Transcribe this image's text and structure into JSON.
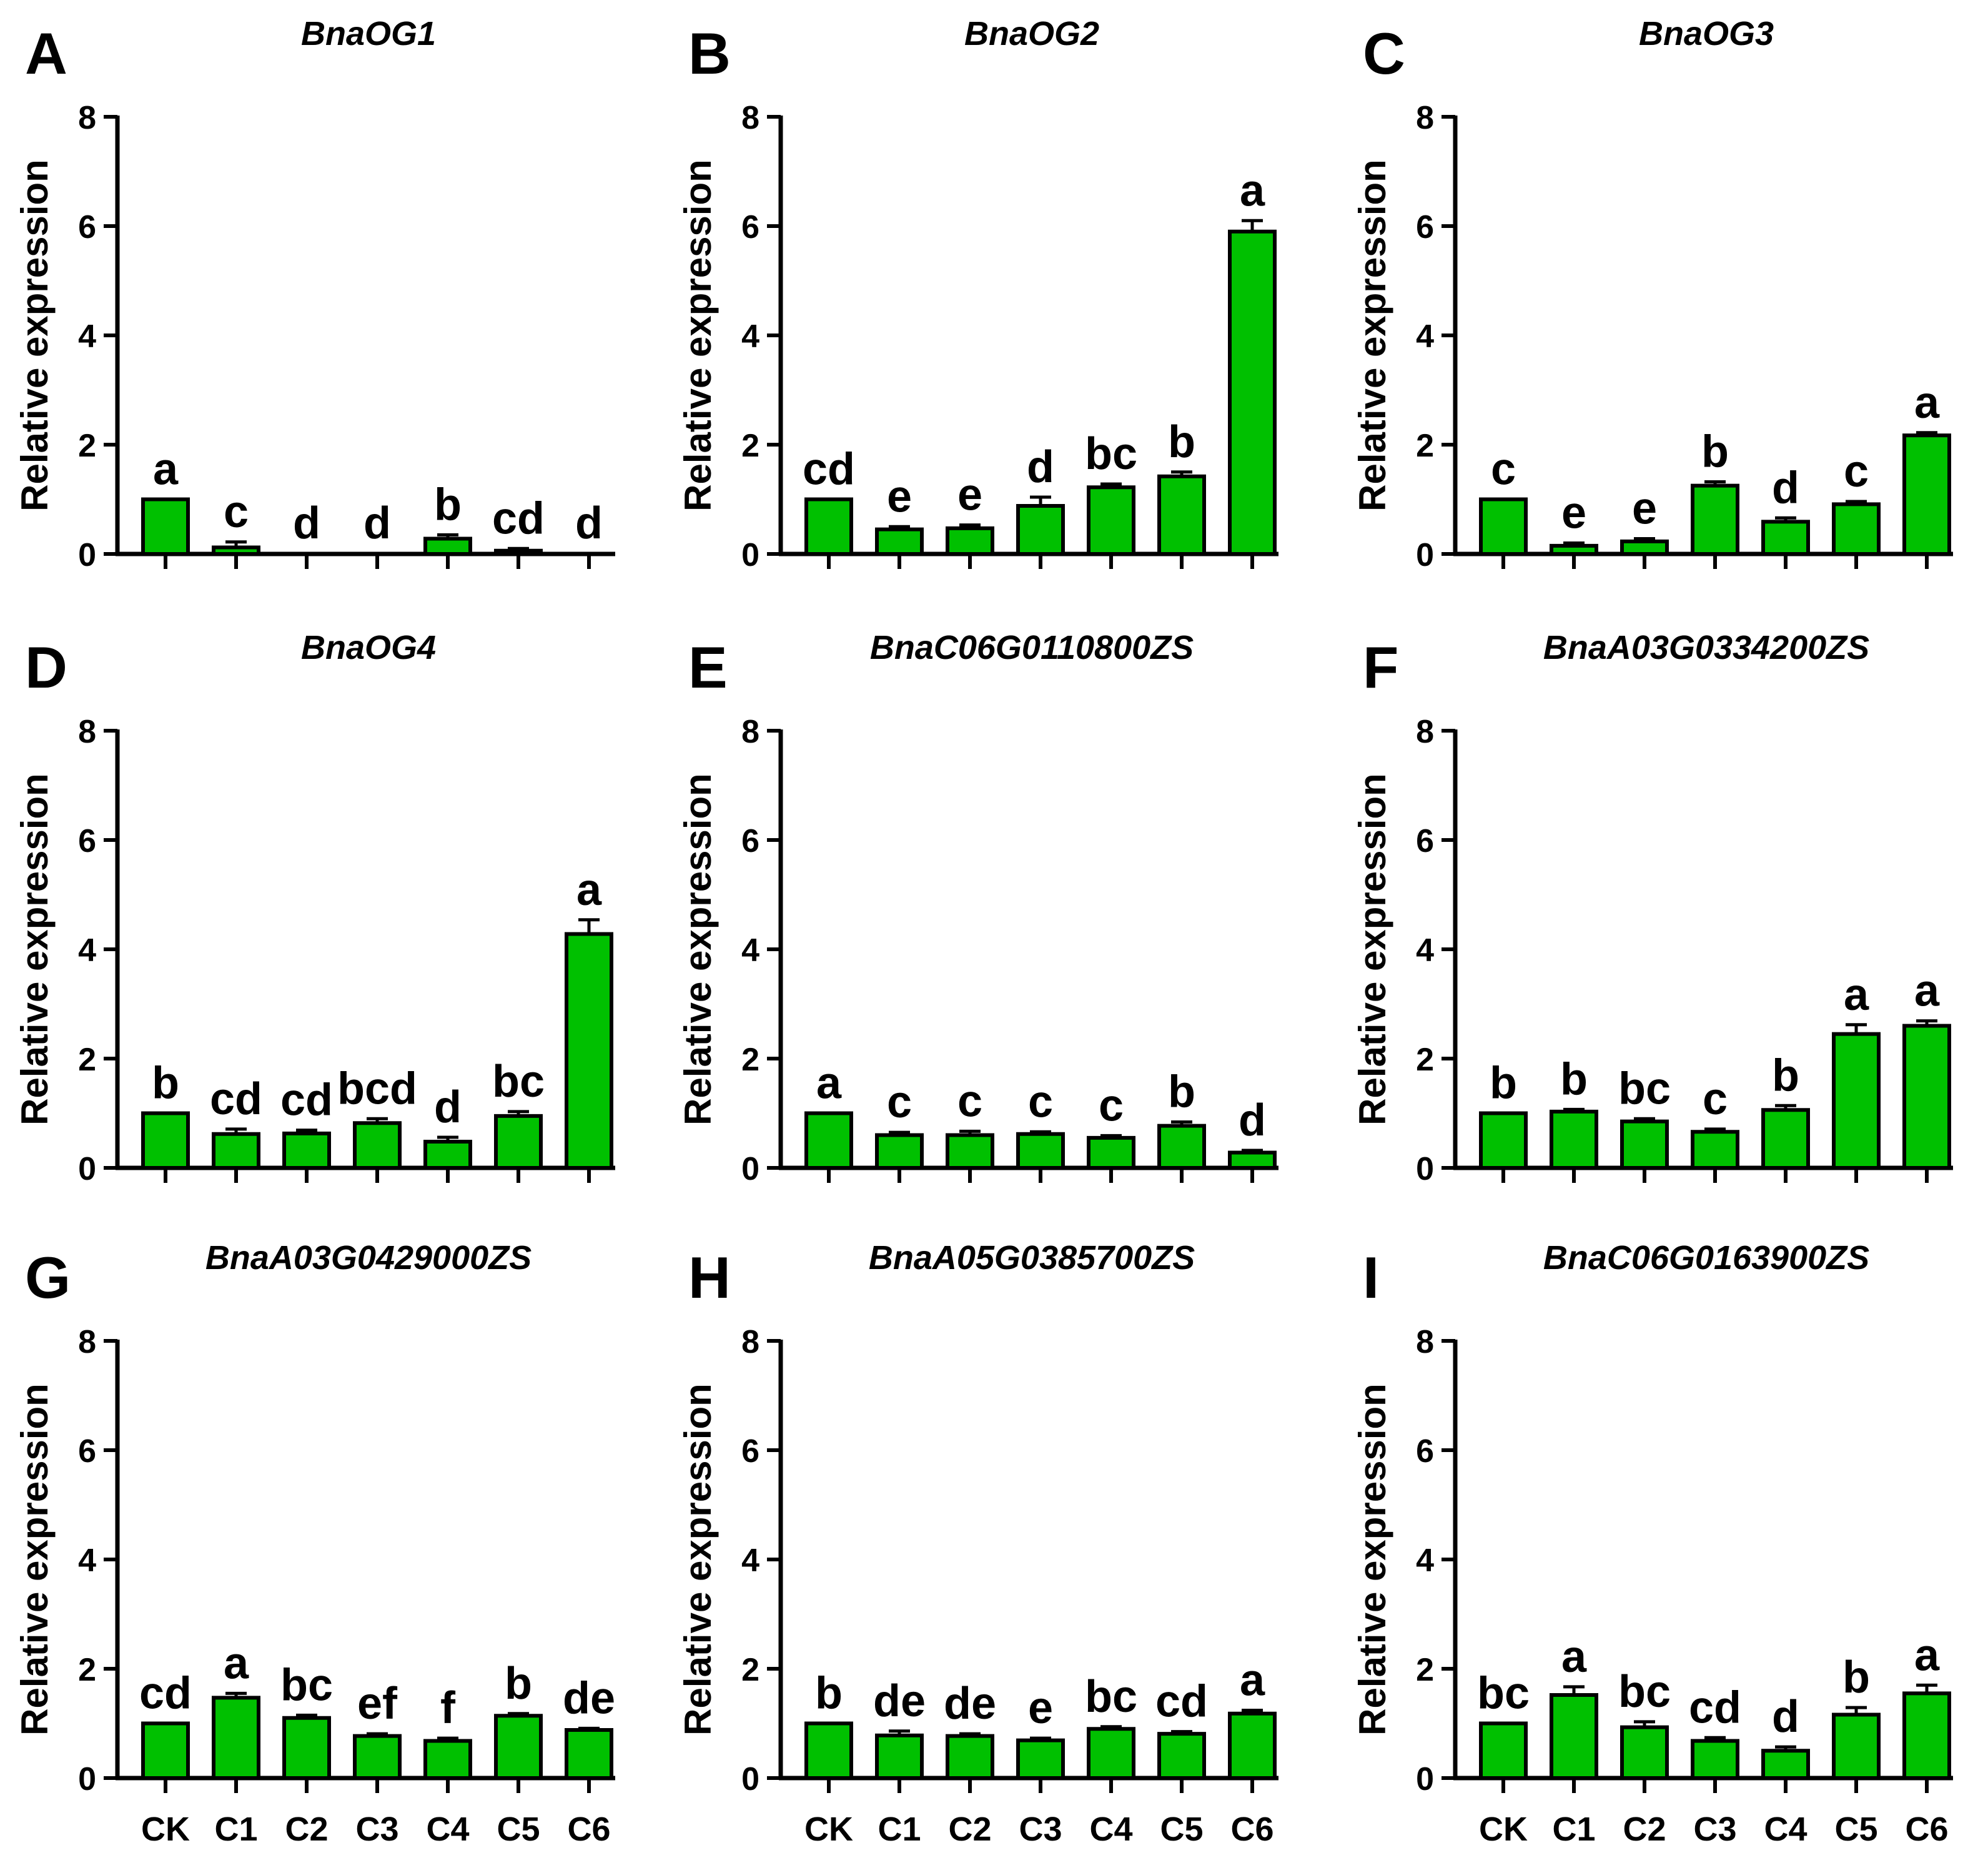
{
  "figure": {
    "bar_color": "#00c000",
    "bar_stroke": "#000000",
    "ylabel": "Relative expression",
    "categories": [
      "CK",
      "C1",
      "C2",
      "C3",
      "C4",
      "C5",
      "C6"
    ]
  },
  "chart_data": [
    {
      "type": "bar",
      "panel": "A",
      "title": "BnaOG1",
      "xlabel": "",
      "ylabel": "Relative expression",
      "categories": [
        "CK",
        "C1",
        "C2",
        "C3",
        "C4",
        "C5",
        "C6"
      ],
      "ylim": [
        0,
        8
      ],
      "yticks": [
        "0",
        "2",
        "4",
        "6",
        "8"
      ],
      "values": [
        1.0,
        0.12,
        0.01,
        0.01,
        0.28,
        0.06,
        0.01
      ],
      "errors": [
        0.0,
        0.1,
        0.0,
        0.0,
        0.07,
        0.04,
        0.0
      ],
      "letters": [
        "a",
        "c",
        "d",
        "d",
        "b",
        "cd",
        "d"
      ]
    },
    {
      "type": "bar",
      "panel": "B",
      "title": "BnaOG2",
      "xlabel": "",
      "ylabel": "Relative expression",
      "categories": [
        "CK",
        "C1",
        "C2",
        "C3",
        "C4",
        "C5",
        "C6"
      ],
      "ylim": [
        0,
        8
      ],
      "yticks": [
        "0",
        "2",
        "4",
        "6",
        "8"
      ],
      "values": [
        1.0,
        0.45,
        0.47,
        0.88,
        1.22,
        1.42,
        5.9
      ],
      "errors": [
        0.0,
        0.05,
        0.06,
        0.16,
        0.06,
        0.08,
        0.2
      ],
      "letters": [
        "cd",
        "e",
        "e",
        "d",
        "bc",
        "b",
        "a"
      ]
    },
    {
      "type": "bar",
      "panel": "C",
      "title": "BnaOG3",
      "xlabel": "",
      "ylabel": "Relative expression",
      "categories": [
        "CK",
        "C1",
        "C2",
        "C3",
        "C4",
        "C5",
        "C6"
      ],
      "ylim": [
        0,
        8
      ],
      "yticks": [
        "0",
        "2",
        "4",
        "6",
        "8"
      ],
      "values": [
        1.0,
        0.15,
        0.23,
        1.25,
        0.59,
        0.91,
        2.17
      ],
      "errors": [
        0.0,
        0.05,
        0.05,
        0.07,
        0.07,
        0.05,
        0.05
      ],
      "letters": [
        "c",
        "e",
        "e",
        "b",
        "d",
        "c",
        "a"
      ]
    },
    {
      "type": "bar",
      "panel": "D",
      "title": "BnaOG4",
      "xlabel": "",
      "ylabel": "Relative expression",
      "categories": [
        "CK",
        "C1",
        "C2",
        "C3",
        "C4",
        "C5",
        "C6"
      ],
      "ylim": [
        0,
        8
      ],
      "yticks": [
        "0",
        "2",
        "4",
        "6",
        "8"
      ],
      "values": [
        1.0,
        0.62,
        0.63,
        0.82,
        0.48,
        0.95,
        4.28
      ],
      "errors": [
        0.0,
        0.09,
        0.06,
        0.08,
        0.08,
        0.08,
        0.26
      ],
      "letters": [
        "b",
        "cd",
        "cd",
        "bcd",
        "d",
        "bc",
        "a"
      ]
    },
    {
      "type": "bar",
      "panel": "E",
      "title": "BnaC06G0110800ZS",
      "xlabel": "",
      "ylabel": "Relative expression",
      "categories": [
        "CK",
        "C1",
        "C2",
        "C3",
        "C4",
        "C5",
        "C6"
      ],
      "ylim": [
        0,
        8
      ],
      "yticks": [
        "0",
        "2",
        "4",
        "6",
        "8"
      ],
      "values": [
        1.0,
        0.6,
        0.6,
        0.62,
        0.55,
        0.77,
        0.28
      ],
      "errors": [
        0.0,
        0.05,
        0.07,
        0.04,
        0.04,
        0.07,
        0.04
      ],
      "letters": [
        "a",
        "c",
        "c",
        "c",
        "c",
        "b",
        "d"
      ]
    },
    {
      "type": "bar",
      "panel": "F",
      "title": "BnaA03G0334200ZS",
      "xlabel": "",
      "ylabel": "Relative expression",
      "categories": [
        "CK",
        "C1",
        "C2",
        "C3",
        "C4",
        "C5",
        "C6"
      ],
      "ylim": [
        0,
        8
      ],
      "yticks": [
        "0",
        "2",
        "4",
        "6",
        "8"
      ],
      "values": [
        1.0,
        1.03,
        0.85,
        0.66,
        1.06,
        2.45,
        2.6
      ],
      "errors": [
        0.0,
        0.04,
        0.05,
        0.05,
        0.08,
        0.17,
        0.09
      ],
      "letters": [
        "b",
        "b",
        "bc",
        "c",
        "b",
        "a",
        "a"
      ]
    },
    {
      "type": "bar",
      "panel": "G",
      "title": "BnaA03G0429000ZS",
      "xlabel": "",
      "ylabel": "Relative expression",
      "categories": [
        "CK",
        "C1",
        "C2",
        "C3",
        "C4",
        "C5",
        "C6"
      ],
      "ylim": [
        0,
        8
      ],
      "yticks": [
        "0",
        "2",
        "4",
        "6",
        "8"
      ],
      "values": [
        1.0,
        1.47,
        1.1,
        0.77,
        0.68,
        1.14,
        0.88
      ],
      "errors": [
        0.0,
        0.08,
        0.05,
        0.04,
        0.05,
        0.04,
        0.03
      ],
      "letters": [
        "cd",
        "a",
        "bc",
        "ef",
        "f",
        "b",
        "de"
      ]
    },
    {
      "type": "bar",
      "panel": "H",
      "title": "BnaA05G0385700ZS",
      "xlabel": "",
      "ylabel": "Relative expression",
      "categories": [
        "CK",
        "C1",
        "C2",
        "C3",
        "C4",
        "C5",
        "C6"
      ],
      "ylim": [
        0,
        8
      ],
      "yticks": [
        "0",
        "2",
        "4",
        "6",
        "8"
      ],
      "values": [
        1.0,
        0.78,
        0.77,
        0.69,
        0.9,
        0.81,
        1.18
      ],
      "errors": [
        0.0,
        0.08,
        0.04,
        0.04,
        0.04,
        0.04,
        0.06
      ],
      "letters": [
        "b",
        "de",
        "de",
        "e",
        "bc",
        "cd",
        "a"
      ]
    },
    {
      "type": "bar",
      "panel": "I",
      "title": "BnaC06G0163900ZS",
      "xlabel": "",
      "ylabel": "Relative expression",
      "categories": [
        "CK",
        "C1",
        "C2",
        "C3",
        "C4",
        "C5",
        "C6"
      ],
      "ylim": [
        0,
        8
      ],
      "yticks": [
        "0",
        "2",
        "4",
        "6",
        "8"
      ],
      "values": [
        1.0,
        1.52,
        0.93,
        0.68,
        0.5,
        1.16,
        1.55
      ],
      "errors": [
        0.0,
        0.15,
        0.1,
        0.06,
        0.07,
        0.13,
        0.15
      ],
      "letters": [
        "bc",
        "a",
        "bc",
        "cd",
        "d",
        "b",
        "a"
      ]
    }
  ]
}
